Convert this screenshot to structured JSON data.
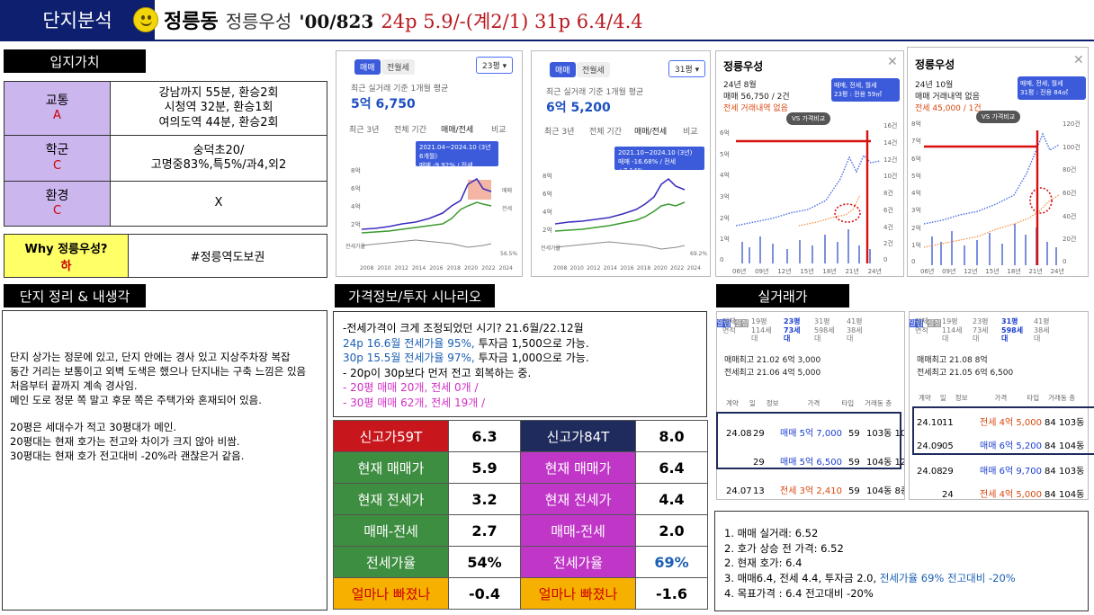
{
  "header": {
    "tab": "단지분석",
    "district": "정릉동",
    "complex": "정릉우성",
    "year_units": "'00/823",
    "summary": "24p 5.9/-(계2/1) 31p 6.4/4.4"
  },
  "sections": {
    "location": "입지가치",
    "notes": "단지 정리 & 내생각",
    "price": "가격정보/투자 시나리오",
    "trades": "실거래가"
  },
  "location": [
    {
      "name": "교통",
      "grade": "A",
      "detail": [
        "강남까지 55분, 환승2회",
        "시청역 32분, 환승1회",
        "여의도역 44분, 환승2회"
      ]
    },
    {
      "name": "학군",
      "grade": "C",
      "detail": [
        "숭덕초20/",
        "고명중83%,특5%/과4,외2"
      ]
    },
    {
      "name": "환경",
      "grade": "C",
      "detail": [
        "X"
      ]
    }
  ],
  "why": {
    "label": "Why 정릉우성?",
    "grade": "하",
    "value": "#정릉역도보권"
  },
  "notes": [
    "단지 상가는 정문에 있고, 단지 안에는 경사 있고 지상주차장 복잡",
    "동간 거리는 보통이고 외벽 도색은 했으나 단지내는 구축 느낌은 있음",
    "처음부터 끝까지 계속 경사임.",
    "메인 도로 정문 쪽 말고 후문 쪽은 주택가와 혼재되어 있음.",
    "",
    "20평은 세대수가 적고 30평대가 메인.",
    "20평대는 현재 호가는 전고와 차이가 크지 않아 비쌈.",
    "30평대는 현재 호가 전고대비 -20%라 괜찮은거 같음."
  ],
  "scenario": {
    "line1": "-전세가격이 크게 조정되었던 시기? 21.6월/22.12월",
    "line2_a": "24p 16.6월 전세가율 95%,",
    "line2_b": " 투자금 1,500으로 가능.",
    "line3_a": "30p 15.5월 전세가율 97%,",
    "line3_b": " 투자금 1,000으로 가능.",
    "line4": "- 20p이 30p보다 먼저 전고 회복하는 중.",
    "line5": "-   20평 매매 20개, 전세 0개 /",
    "line6": "-   30평 매매 62개, 전세 19개 /"
  },
  "price_left": [
    {
      "label": "신고가59T",
      "value": "6.3"
    },
    {
      "label": "현재 매매가",
      "value": "5.9"
    },
    {
      "label": "현재 전세가",
      "value": "3.2"
    },
    {
      "label": "매매-전세",
      "value": "2.7"
    },
    {
      "label": "전세가율",
      "value": "54%"
    },
    {
      "label": "얼마나 빠졌나",
      "value": "-0.4"
    }
  ],
  "price_right": [
    {
      "label": "신고가84T",
      "value": "8.0"
    },
    {
      "label": "현재 매매가",
      "value": "6.4"
    },
    {
      "label": "현재 전세가",
      "value": "4.4"
    },
    {
      "label": "매매-전세",
      "value": "2.0"
    },
    {
      "label": "전세가율",
      "value": "69%"
    },
    {
      "label": "얼마나 빠졌나",
      "value": "-1.6"
    }
  ],
  "chart1": {
    "tabs": [
      "매매",
      "전월세"
    ],
    "size": "23평",
    "caption": "최근 실거래 기준 1개월 평균",
    "price": "5억 6,750",
    "periods": [
      "최근 3년",
      "전체 기간",
      "매매/전세",
      "비교"
    ],
    "tooltip_period": "2021.04~2024.10 (3년 6개월)",
    "tooltip_change": "매매 -9.92% / 전세 -9.16%",
    "years": [
      "2008",
      "2010",
      "2012",
      "2014",
      "2016",
      "2018",
      "2020",
      "2022",
      "2024"
    ],
    "legend_sale": "매매",
    "legend_rent": "전세",
    "ratio_label": "전세가율",
    "ratio_value": "56.5%",
    "yticks": [
      "8억",
      "6억",
      "4억",
      "2억"
    ]
  },
  "chart2": {
    "tabs": [
      "매매",
      "전월세"
    ],
    "size": "31평",
    "caption": "최근 실거래 기준 1개월 평균",
    "price": "6억 5,200",
    "periods": [
      "최근 3년",
      "전체 기간",
      "매매/전세",
      "비교"
    ],
    "tooltip_period": "2021.10~2024.10 (3년)",
    "tooltip_change": "매매 -16.68% / 전세 +7.14%",
    "years": [
      "2008",
      "2010",
      "2012",
      "2014",
      "2016",
      "2018",
      "2020",
      "2022",
      "2024"
    ],
    "legend_sale": "매매",
    "legend_rent": "전세",
    "ratio_label": "전세가율",
    "ratio_value": "69.2%",
    "yticks": [
      "8억",
      "6억",
      "4억",
      "2억"
    ]
  },
  "chart3": {
    "title": "정릉우성",
    "month": "24년 8월",
    "sale": "매매 56,750 / 2건",
    "rent": "전세 거래내역 없음",
    "filter": "매매, 전세, 월세",
    "size": "23평 : 전용 59㎡",
    "compare": "VS 가격비교",
    "yticks_left": [
      "6억",
      "5억",
      "4억",
      "3억",
      "2억",
      "1억",
      "0"
    ],
    "yticks_right": [
      "16건",
      "14건",
      "12건",
      "10건",
      "8건",
      "6건",
      "4건",
      "2건",
      "0"
    ],
    "xticks": [
      "06년",
      "09년",
      "12년",
      "15년",
      "18년",
      "21년",
      "24년"
    ]
  },
  "chart4": {
    "title": "정릉우성",
    "month": "24년 10월",
    "sale": "매매 거래내역 없음",
    "rent": "전세 45,000 / 1건",
    "filter": "매매, 전세, 월세",
    "size": "31평 : 전용 84㎡",
    "compare": "VS 가격비교",
    "yticks_left": [
      "8억",
      "7억",
      "6억",
      "5억",
      "4억",
      "3억",
      "2억",
      "1억",
      "0"
    ],
    "yticks_right": [
      "120건",
      "100건",
      "80건",
      "60건",
      "40건",
      "20건",
      "0"
    ],
    "xticks": [
      "06년",
      "09년",
      "12년",
      "15년",
      "18년",
      "21년",
      "24년"
    ]
  },
  "trade1": {
    "tabs": [
      "전체 면적",
      "19평 114세대",
      "23평 73세대",
      "31평 598세대",
      "41평 38세대"
    ],
    "alarm": "알림",
    "high_sale": "매매최고 21.02 6억 3,000",
    "high_rent": "전세최고 21.06 4억 5,000",
    "settings": "설정",
    "cols": [
      "계약",
      "일",
      "정보",
      "가격",
      "타입",
      "거래동 층"
    ],
    "rows": [
      {
        "ym": "24.08",
        "d": "29",
        "info": "",
        "price": "매매 5억 7,000",
        "type": "59",
        "bldg": "103동 10층"
      },
      {
        "ym": "",
        "d": "29",
        "info": "",
        "price": "매매 5억 6,500",
        "type": "59",
        "bldg": "104동 12층"
      },
      {
        "ym": "24.07",
        "d": "13",
        "info": "",
        "price": "전세 3억 2,410",
        "type": "59",
        "bldg": "104동 8층"
      }
    ]
  },
  "trade2": {
    "tabs": [
      "전체 면적",
      "19평 114세대",
      "23평 73세대",
      "31평 598세대",
      "41평 38세대"
    ],
    "alarm": "알림",
    "high_sale": "매매최고 21.08 8억",
    "high_rent": "전세최고 21.05 6억 6,500",
    "settings": "설정",
    "cols": [
      "계약",
      "일",
      "정보",
      "가격",
      "타입",
      "거래동 층"
    ],
    "rows": [
      {
        "ym": "24.10",
        "d": "11",
        "info": "",
        "price": "전세 4억 5,000",
        "type": "84",
        "bldg": "103동 17층"
      },
      {
        "ym": "24.09",
        "d": "05",
        "info": "",
        "price": "매매 6억 5,200",
        "type": "84",
        "bldg": "104동 8층"
      },
      {
        "ym": "24.08",
        "d": "29",
        "info": "",
        "price": "매매 6억 9,700",
        "type": "84",
        "bldg": "103동 10층"
      },
      {
        "ym": "",
        "d": "24",
        "info": "",
        "price": "전세 4억 5,000",
        "type": "84",
        "bldg": "104동 8층"
      }
    ]
  },
  "summary": {
    "l1": "1. 매매 실거래: 6.52",
    "l2": "2. 호가 상승 전 가격: 6.52",
    "l3": "2. 현재 호가: 6.4",
    "l4a": "3. 매매6.4, 전세 4.4, 투자금 2.0, ",
    "l4b": "전세가율 69%  전고대비 -20%",
    "l5": "4. 목표가격 : 6.4 전고대비 -20%"
  },
  "colors": {
    "navy": "#0d1f6e",
    "blue": "#1a5fb4",
    "pink": "#d12fc6",
    "red": "#c8161d"
  }
}
